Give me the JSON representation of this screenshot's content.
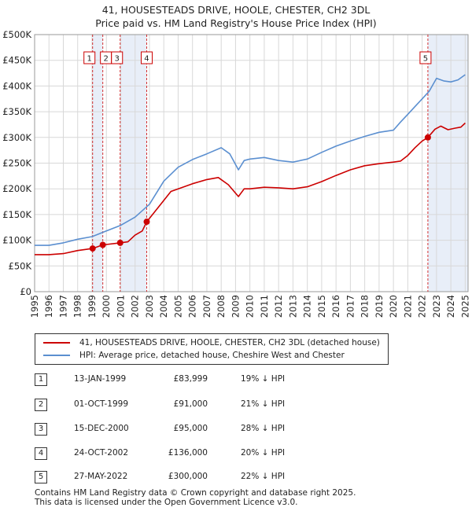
{
  "title": "41, HOUSESTEADS DRIVE, HOOLE, CHESTER, CH2 3DL",
  "subtitle": "Price paid vs. HM Land Registry's House Price Index (HPI)",
  "chart_data": {
    "type": "line",
    "title": "41, HOUSESTEADS DRIVE, HOOLE, CHESTER, CH2 3DL",
    "subtitle": "Price paid vs. HM Land Registry's House Price Index (HPI)",
    "xlabel": "",
    "ylabel": "",
    "xlim": [
      1995,
      2025.2
    ],
    "ylim": [
      0,
      500000
    ],
    "grid": true,
    "y_ticks": [
      0,
      50000,
      100000,
      150000,
      200000,
      250000,
      300000,
      350000,
      400000,
      450000,
      500000
    ],
    "y_tick_labels": [
      "£0",
      "£50K",
      "£100K",
      "£150K",
      "£200K",
      "£250K",
      "£300K",
      "£350K",
      "£400K",
      "£450K",
      "£500K"
    ],
    "x_ticks": [
      "1995",
      "1996",
      "1997",
      "1998",
      "1999",
      "2000",
      "2001",
      "2002",
      "2003",
      "2004",
      "2005",
      "2006",
      "2007",
      "2008",
      "2009",
      "2010",
      "2011",
      "2012",
      "2013",
      "2014",
      "2015",
      "2016",
      "2017",
      "2018",
      "2019",
      "2020",
      "2021",
      "2022",
      "2023",
      "2024",
      "2025"
    ],
    "series": [
      {
        "name": "41, HOUSESTEADS DRIVE, HOOLE, CHESTER, CH2 3DL (detached house)",
        "color": "#cc0000",
        "x": [
          1995,
          1996,
          1997,
          1998,
          1999.04,
          1999.75,
          2000.96,
          2001.5,
          2002.0,
          2002.5,
          2002.81,
          2003.5,
          2004.5,
          2005,
          2006,
          2007,
          2007.8,
          2008.5,
          2009.2,
          2009.6,
          2010,
          2011,
          2012,
          2013,
          2014,
          2015,
          2016,
          2017,
          2018,
          2019,
          2020,
          2020.5,
          2021,
          2021.5,
          2022.0,
          2022.4,
          2022.9,
          2023.3,
          2023.8,
          2024.3,
          2024.7,
          2025.0
        ],
        "values": [
          72000,
          72000,
          74000,
          80000,
          83999,
          91000,
          95000,
          97000,
          110000,
          118000,
          136000,
          160000,
          195000,
          200000,
          210000,
          218000,
          222000,
          208000,
          185000,
          200000,
          200000,
          203000,
          202000,
          200000,
          204000,
          214000,
          226000,
          237000,
          245000,
          249000,
          252000,
          254000,
          265000,
          280000,
          293000,
          300000,
          316000,
          322000,
          315000,
          318000,
          320000,
          328000
        ]
      },
      {
        "name": "HPI: Average price, detached house, Cheshire West and Chester",
        "color": "#5b8fd0",
        "x": [
          1995,
          1996,
          1997,
          1998,
          1999,
          2000,
          2001,
          2002,
          2003,
          2004,
          2005,
          2006,
          2007,
          2008,
          2008.6,
          2009.2,
          2009.6,
          2010,
          2011,
          2012,
          2013,
          2014,
          2015,
          2016,
          2017,
          2018,
          2019,
          2020,
          2020.5,
          2021,
          2021.5,
          2022,
          2022.5,
          2023,
          2023.5,
          2024,
          2024.5,
          2025.0
        ],
        "values": [
          90000,
          90000,
          95000,
          102000,
          107000,
          118000,
          129000,
          145000,
          170000,
          215000,
          242000,
          257000,
          268000,
          280000,
          268000,
          237000,
          255000,
          258000,
          261000,
          255000,
          252000,
          258000,
          271000,
          283000,
          293000,
          302000,
          310000,
          314000,
          330000,
          345000,
          360000,
          375000,
          390000,
          415000,
          410000,
          408000,
          412000,
          422000
        ]
      }
    ],
    "sales": [
      {
        "label": "1",
        "x": 1999.04,
        "price": 83999
      },
      {
        "label": "2",
        "x": 1999.75,
        "price": 91000
      },
      {
        "label": "3",
        "x": 2000.96,
        "price": 95000
      },
      {
        "label": "4",
        "x": 2002.81,
        "price": 136000
      },
      {
        "label": "5",
        "x": 2022.4,
        "price": 300000
      }
    ],
    "shaded_periods": [
      [
        1999.04,
        1999.75
      ],
      [
        2000.96,
        2002.81
      ],
      [
        2022.4,
        2025.2
      ]
    ]
  },
  "legend": {
    "property": "41, HOUSESTEADS DRIVE, HOOLE, CHESTER, CH2 3DL (detached house)",
    "hpi": "HPI: Average price, detached house, Cheshire West and Chester"
  },
  "transactions": [
    {
      "num": "1",
      "date": "13-JAN-1999",
      "price": "£83,999",
      "hpi": "19% ↓ HPI"
    },
    {
      "num": "2",
      "date": "01-OCT-1999",
      "price": "£91,000",
      "hpi": "21% ↓ HPI"
    },
    {
      "num": "3",
      "date": "15-DEC-2000",
      "price": "£95,000",
      "hpi": "28% ↓ HPI"
    },
    {
      "num": "4",
      "date": "24-OCT-2002",
      "price": "£136,000",
      "hpi": "20% ↓ HPI"
    },
    {
      "num": "5",
      "date": "27-MAY-2022",
      "price": "£300,000",
      "hpi": "22% ↓ HPI"
    }
  ],
  "footer": {
    "line1": "Contains HM Land Registry data © Crown copyright and database right 2025.",
    "line2": "This data is licensed under the Open Government Licence v3.0."
  },
  "colors": {
    "property": "#cc0000",
    "hpi": "#5b8fd0",
    "shade": "#e8eef8"
  }
}
